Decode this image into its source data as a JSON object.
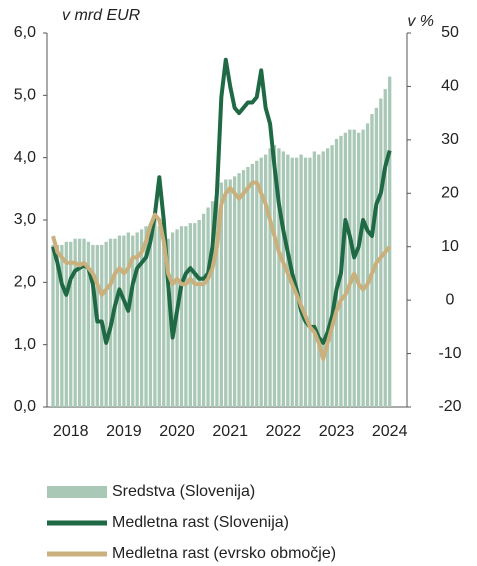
{
  "chart_data": {
    "type": "bar",
    "y_label": "v mrd EUR",
    "y2_label": "v %",
    "categories": [
      null,
      null,
      null,
      null,
      "2018",
      null,
      null,
      null,
      null,
      null,
      null,
      null,
      null,
      null,
      null,
      null,
      "2019",
      null,
      null,
      null,
      null,
      null,
      null,
      null,
      null,
      null,
      null,
      null,
      "2020",
      null,
      null,
      null,
      null,
      null,
      null,
      null,
      null,
      null,
      null,
      null,
      "2021",
      null,
      null,
      null,
      null,
      null,
      null,
      null,
      null,
      null,
      null,
      null,
      "2022",
      null,
      null,
      null,
      null,
      null,
      null,
      null,
      null,
      null,
      null,
      null,
      "2023",
      null,
      null,
      null,
      null,
      null,
      null,
      null,
      null,
      null,
      null,
      null,
      "2024"
    ],
    "series": [
      {
        "name": "Sredstva (Slovenija)",
        "type": "bar",
        "color": "#a9c8b6",
        "values": [
          2.6,
          2.6,
          2.6,
          2.65,
          2.65,
          2.7,
          2.7,
          2.7,
          2.65,
          2.6,
          2.6,
          2.6,
          2.65,
          2.7,
          2.7,
          2.75,
          2.75,
          2.8,
          2.75,
          2.8,
          2.85,
          2.9,
          2.9,
          3.0,
          2.9,
          2.7,
          2.7,
          2.8,
          2.85,
          2.9,
          2.9,
          2.95,
          2.95,
          3.0,
          3.1,
          3.2,
          3.3,
          3.4,
          3.6,
          3.65,
          3.65,
          3.7,
          3.75,
          3.8,
          3.85,
          3.9,
          3.95,
          4.0,
          4.05,
          4.15,
          4.2,
          4.15,
          4.1,
          4.05,
          4.0,
          4.0,
          4.05,
          4.0,
          4.0,
          4.1,
          4.05,
          4.1,
          4.15,
          4.2,
          4.3,
          4.35,
          4.4,
          4.45,
          4.45,
          4.4,
          4.45,
          4.55,
          4.7,
          4.8,
          4.95,
          5.1,
          5.3
        ]
      },
      {
        "name": "Medletna rast (Slovenija)",
        "type": "line",
        "axis": "y2",
        "color": "#1f6a45",
        "values": [
          10,
          7,
          3,
          1,
          4,
          5.5,
          6,
          6.5,
          6,
          3,
          -4,
          -4,
          -8,
          -5,
          -1,
          2,
          0,
          -2,
          3,
          6,
          7,
          8,
          11,
          16,
          23,
          15,
          3,
          -7,
          -2,
          3,
          5,
          6,
          5,
          4,
          4,
          5,
          10,
          20,
          38,
          45,
          40,
          36,
          35,
          36,
          37,
          37,
          38,
          43,
          36,
          33,
          25,
          18,
          13,
          9,
          5,
          2,
          -2,
          -4,
          -5,
          -5,
          -7,
          -8,
          -6,
          -3,
          2,
          5,
          15,
          12,
          8,
          10,
          15,
          13,
          12,
          18,
          20,
          25,
          28
        ]
      },
      {
        "name": "Medletna rast (evrsko območje)",
        "type": "line",
        "axis": "y2",
        "color": "#c9b07c",
        "values": [
          12,
          9,
          8,
          7,
          7,
          7,
          6.5,
          7,
          6,
          5,
          3,
          1,
          2,
          3,
          5,
          6,
          5,
          6,
          8,
          8,
          9,
          11,
          14,
          16,
          15,
          11,
          5,
          3,
          4,
          3,
          3,
          4,
          3,
          3,
          3,
          4,
          6,
          10,
          18,
          20,
          21,
          20,
          19,
          20,
          21,
          22,
          22,
          20,
          18,
          15,
          12,
          9,
          7,
          5,
          3,
          1,
          -1,
          -3,
          -5,
          -6,
          -8,
          -11,
          -8,
          -5,
          -2,
          0,
          1,
          3,
          5,
          3,
          2,
          3,
          5,
          7,
          8,
          9,
          10
        ]
      }
    ],
    "ylim": [
      0,
      6
    ],
    "yticks": [
      {
        "value": 0,
        "label": "0,0"
      },
      {
        "value": 1,
        "label": "1,0"
      },
      {
        "value": 2,
        "label": "2,0"
      },
      {
        "value": 3,
        "label": "3,0"
      },
      {
        "value": 4,
        "label": "4,0"
      },
      {
        "value": 5,
        "label": "5,0"
      },
      {
        "value": 6,
        "label": "6,0"
      }
    ],
    "y2lim": [
      -20,
      50
    ],
    "y2ticks": [
      -20,
      -10,
      0,
      10,
      20,
      30,
      40,
      50
    ]
  }
}
